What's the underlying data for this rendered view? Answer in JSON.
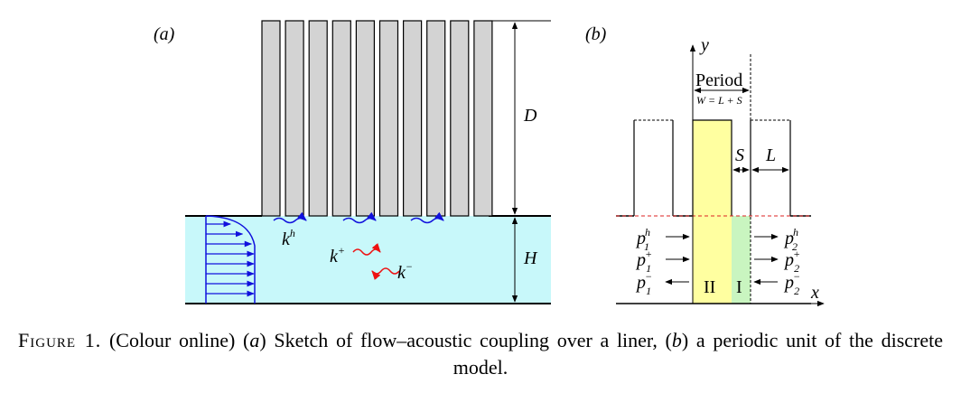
{
  "figure": {
    "panel_a": {
      "tag": "(a)",
      "label_D": "D",
      "label_H": "H",
      "label_kh_base": "k",
      "label_kh_sup": "h",
      "label_kplus_base": "k",
      "label_kplus_sup": "+",
      "label_kminus_base": "k",
      "label_kminus_sup": "−",
      "colors": {
        "fluid": "#c8f8fa",
        "wall": "#d3d3d3",
        "flow_arrows": "#1111dd",
        "upstream_wave": "#ee1111"
      }
    },
    "panel_b": {
      "tag": "(b)",
      "axis_y": "y",
      "axis_x": "x",
      "period_label": "Period",
      "period_formula": "W = L + S",
      "label_S": "S",
      "label_L": "L",
      "region_II": "II",
      "region_I": "I",
      "p_base": "p",
      "p1h_sup": "h",
      "p1h_sub": "1",
      "p1p_sup": "+",
      "p1p_sub": "1",
      "p1m_sup": "−",
      "p1m_sub": "1",
      "p2h_sup": "h",
      "p2h_sub": "2",
      "p2p_sup": "+",
      "p2p_sub": "2",
      "p2m_sup": "−",
      "p2m_sub": "2",
      "colors": {
        "region_II": "#ffffa0",
        "region_I": "#c9f5c0",
        "interface": "#dd2222"
      }
    }
  },
  "caption": {
    "figure_label": "Figure 1.",
    "text_1": "(Colour online) (",
    "a_tag": "a",
    "text_2": ") Sketch of flow–acoustic coupling over a liner, (",
    "b_tag": "b",
    "text_3": ") a periodic unit of the discrete model."
  }
}
